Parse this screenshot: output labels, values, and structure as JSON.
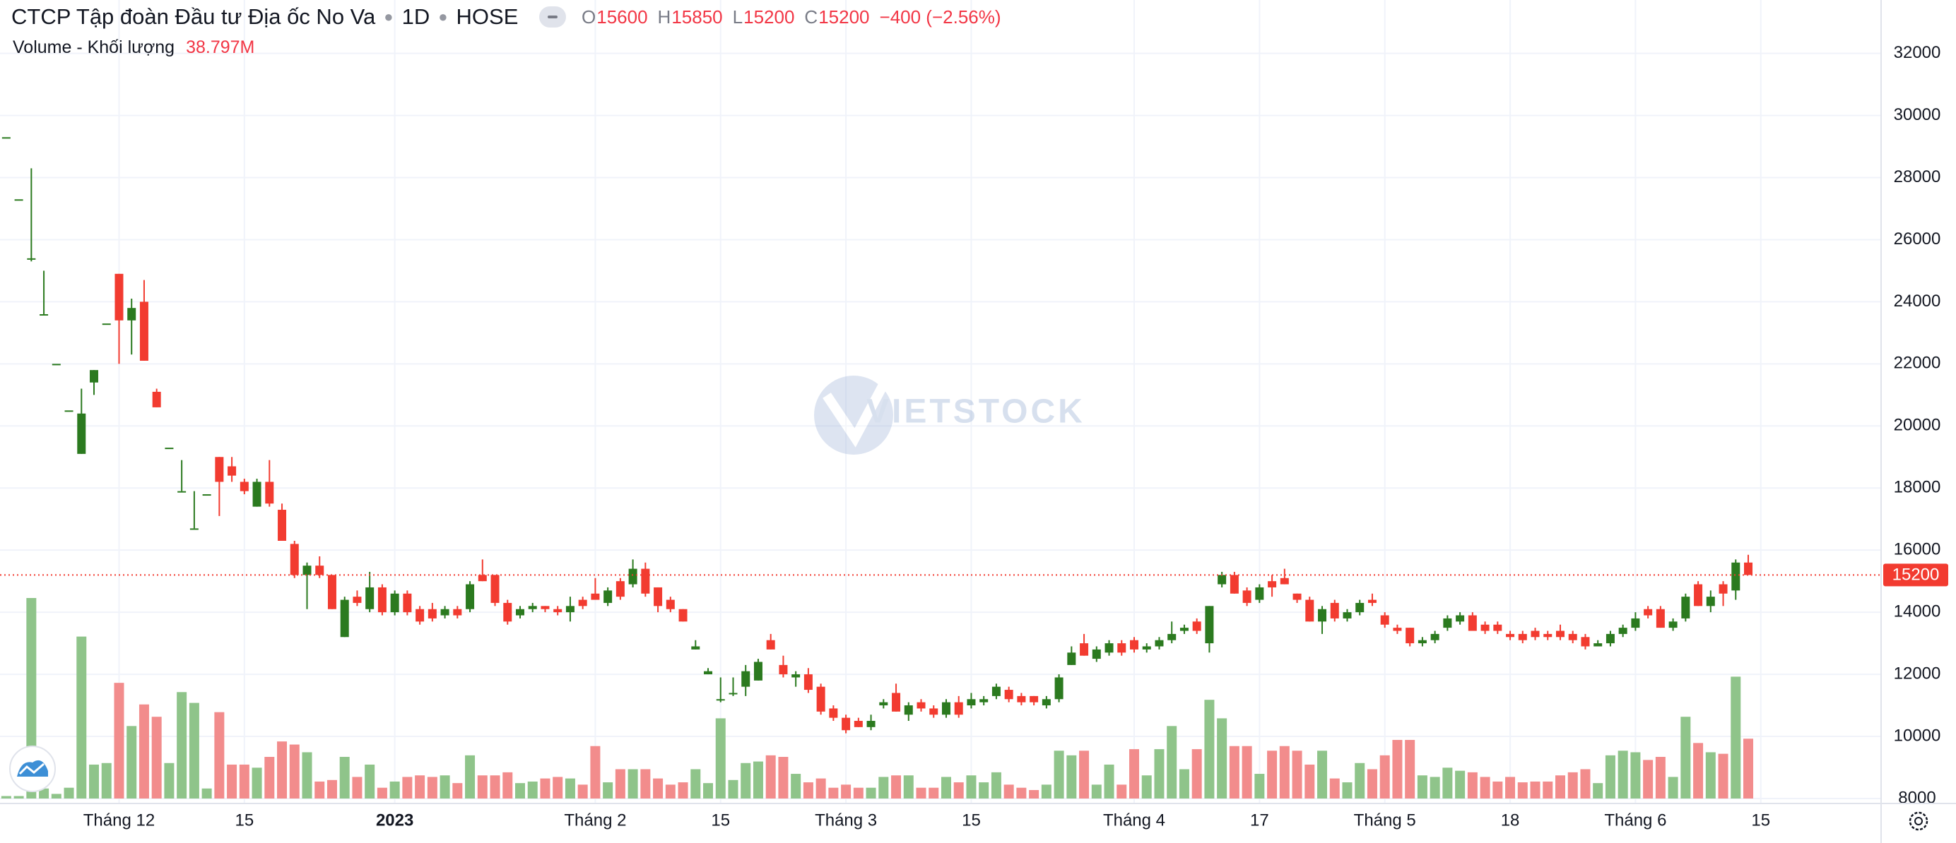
{
  "chart_data": {
    "type": "candlestick",
    "title": "CTCP Tập đoàn Đầu tư Địa ốc No Va",
    "interval": "1D",
    "exchange": "HOSE",
    "ohlc_keys": [
      "O",
      "H",
      "L",
      "C"
    ],
    "change_label": "−400 (−2.56%)",
    "volume_title": "Volume - Khối lượng",
    "volume_label": "38.797M",
    "watermark": "VIETSTOCK",
    "up_color": "#2b7a1f",
    "down_color": "#f23b30",
    "volume_up_color": "#8fc48a",
    "volume_down_color": "#f28c8c",
    "grid": true,
    "ylim": [
      7840,
      33720
    ],
    "yticks": [
      8000,
      10000,
      12000,
      14000,
      16000,
      18000,
      20000,
      22000,
      24000,
      26000,
      28000,
      30000,
      32000
    ],
    "xlim": [
      -0.5,
      149.6
    ],
    "xticks": [
      {
        "value": 9,
        "label": "Tháng 12"
      },
      {
        "value": 19,
        "label": "15"
      },
      {
        "value": 31,
        "label": "2023"
      },
      {
        "value": 47,
        "label": "Tháng 2"
      },
      {
        "value": 57,
        "label": "15"
      },
      {
        "value": 67,
        "label": "Tháng 3"
      },
      {
        "value": 77,
        "label": "15"
      },
      {
        "value": 90,
        "label": "Tháng 4"
      },
      {
        "value": 100,
        "label": "17"
      },
      {
        "value": 110,
        "label": "Tháng 5"
      },
      {
        "value": 120,
        "label": "18"
      },
      {
        "value": 130,
        "label": "Tháng 6"
      },
      {
        "value": 140,
        "label": "15"
      }
    ],
    "open": [
      29300,
      27300,
      25400,
      23600,
      22000,
      20500,
      19100,
      21400,
      23300,
      24900,
      23400,
      24000,
      21100,
      19300,
      17900,
      16700,
      17800,
      19000,
      18700,
      18200,
      17400,
      18200,
      17300,
      16200,
      15200,
      15500,
      15200,
      13200,
      14500,
      14100,
      14800,
      14000,
      14600,
      14100,
      14100,
      13900,
      14100,
      14100,
      15200,
      15200,
      14300,
      13900,
      14100,
      14200,
      14100,
      14000,
      14400,
      14600,
      14300,
      15000,
      14900,
      15400,
      14800,
      14400,
      14100,
      12800,
      12000,
      11200,
      11400,
      11600,
      11800,
      13100,
      12300,
      11900,
      12000,
      11600,
      10900,
      10600,
      10500,
      10300,
      11000,
      11400,
      10700,
      11100,
      10900,
      10700,
      11100,
      11000,
      11100,
      11300,
      11500,
      11300,
      11300,
      11000,
      11200,
      12300,
      13000,
      12500,
      12700,
      13000,
      13100,
      12800,
      12900,
      13100,
      13400,
      13700,
      13000,
      14900,
      15200,
      14700,
      14400,
      15000,
      15100,
      14600,
      14400,
      13700,
      14300,
      13800,
      14000,
      14400,
      13900,
      13500,
      13500,
      13000,
      13100,
      13500,
      13700,
      13900,
      13600,
      13600,
      13300,
      13300,
      13400,
      13300,
      13400,
      13300,
      13200,
      12900,
      13000,
      13300,
      13500,
      14100,
      14100,
      13500,
      13800,
      14900,
      14200,
      14900,
      14700,
      15600
    ],
    "high": [
      29300,
      27300,
      28300,
      25000,
      22000,
      20500,
      21200,
      21800,
      23300,
      24900,
      24100,
      24700,
      21200,
      19300,
      18900,
      17900,
      17800,
      19000,
      19000,
      18300,
      18300,
      18900,
      17500,
      16300,
      15600,
      15800,
      15200,
      14500,
      14700,
      15300,
      14900,
      14700,
      14700,
      14200,
      14300,
      14200,
      14200,
      15000,
      15700,
      15200,
      14400,
      14200,
      14300,
      14200,
      14200,
      14500,
      14500,
      15100,
      14800,
      15100,
      15700,
      15600,
      14800,
      14500,
      14100,
      13100,
      12200,
      11900,
      11900,
      12300,
      12500,
      13300,
      12600,
      12100,
      12200,
      11700,
      11000,
      10700,
      10600,
      10700,
      11200,
      11700,
      11100,
      11200,
      11000,
      11200,
      11300,
      11400,
      11300,
      11700,
      11600,
      11400,
      11300,
      11300,
      12000,
      12900,
      13300,
      12900,
      13100,
      13100,
      13200,
      13000,
      13200,
      13700,
      13600,
      13800,
      14200,
      15300,
      15300,
      14800,
      14900,
      15200,
      15400,
      14600,
      14500,
      14200,
      14400,
      14100,
      14400,
      14600,
      14000,
      13600,
      13500,
      13200,
      13400,
      13900,
      14000,
      14000,
      13700,
      13700,
      13400,
      13400,
      13500,
      13400,
      13600,
      13400,
      13300,
      13100,
      13400,
      13600,
      14000,
      14200,
      14200,
      13800,
      14600,
      15000,
      14700,
      15000,
      15700,
      15850
    ],
    "low": [
      29300,
      27300,
      25300,
      23600,
      22000,
      20500,
      19100,
      21000,
      23300,
      22000,
      22300,
      22100,
      20600,
      19300,
      17900,
      16700,
      17800,
      17100,
      18200,
      17800,
      17400,
      17400,
      16300,
      15100,
      14100,
      15100,
      14100,
      13200,
      14200,
      14000,
      13900,
      13900,
      13900,
      13600,
      13700,
      13800,
      13800,
      14000,
      15000,
      14200,
      13600,
      13800,
      14000,
      14000,
      13900,
      13700,
      14100,
      14400,
      14200,
      14400,
      14800,
      14500,
      14000,
      14000,
      13700,
      12800,
      12000,
      11100,
      11300,
      11300,
      11800,
      12800,
      11900,
      11600,
      11400,
      10700,
      10500,
      10100,
      10300,
      10200,
      10900,
      10800,
      10500,
      10800,
      10600,
      10600,
      10600,
      10900,
      11000,
      11200,
      11100,
      11000,
      11000,
      10900,
      11100,
      12300,
      12600,
      12400,
      12600,
      12600,
      12700,
      12700,
      12800,
      13000,
      13300,
      13300,
      12700,
      14800,
      14600,
      14200,
      14300,
      14500,
      14900,
      14300,
      13700,
      13300,
      13700,
      13700,
      13900,
      14200,
      13500,
      13300,
      12900,
      12900,
      13000,
      13400,
      13600,
      13400,
      13300,
      13300,
      13100,
      13000,
      13100,
      13100,
      13100,
      13000,
      12800,
      12900,
      12900,
      13200,
      13400,
      13800,
      13500,
      13400,
      13700,
      14200,
      14000,
      14200,
      14400,
      15200
    ],
    "close": [
      29300,
      27300,
      25400,
      23600,
      22000,
      20500,
      20400,
      21800,
      23300,
      23400,
      23800,
      22100,
      20600,
      19300,
      17900,
      16700,
      17800,
      18200,
      18400,
      17900,
      18200,
      17500,
      16300,
      15200,
      15500,
      15200,
      14100,
      14400,
      14300,
      14800,
      14000,
      14600,
      14000,
      13700,
      13800,
      14100,
      13900,
      14900,
      15000,
      14300,
      13700,
      14100,
      14200,
      14100,
      14000,
      14200,
      14200,
      14400,
      14700,
      14500,
      15400,
      14600,
      14200,
      14100,
      13700,
      12900,
      12100,
      11200,
      11400,
      12100,
      12400,
      12800,
      12000,
      12000,
      11500,
      10800,
      10600,
      10200,
      10300,
      10500,
      11100,
      10800,
      11000,
      10900,
      10700,
      11100,
      10700,
      11200,
      11200,
      11600,
      11200,
      11100,
      11100,
      11200,
      11900,
      12700,
      12600,
      12800,
      13000,
      12700,
      12800,
      12900,
      13100,
      13300,
      13500,
      13400,
      14200,
      15200,
      14600,
      14300,
      14800,
      14800,
      14900,
      14400,
      13700,
      14100,
      13800,
      14000,
      14300,
      14300,
      13600,
      13400,
      13000,
      13100,
      13300,
      13800,
      13900,
      13400,
      13400,
      13400,
      13200,
      13100,
      13200,
      13200,
      13200,
      13100,
      12900,
      13000,
      13300,
      13500,
      13800,
      13900,
      13500,
      13700,
      14500,
      14200,
      14500,
      14600,
      15600,
      15200
    ],
    "volume": [
      1.6,
      1.6,
      130,
      6.5,
      3,
      7,
      105,
      22,
      23,
      75,
      47,
      61,
      53,
      23,
      69,
      62,
      6.5,
      56,
      22,
      22,
      20,
      27,
      37,
      35,
      30,
      11,
      12,
      27,
      14,
      22,
      7,
      11,
      14,
      15,
      14,
      15,
      10,
      28,
      15,
      15,
      17,
      10,
      11,
      13,
      14,
      13,
      9,
      34,
      10.5,
      19,
      19,
      19,
      13,
      9,
      10.5,
      19,
      10,
      52,
      12,
      23,
      24,
      28,
      27,
      16,
      10.5,
      13,
      7,
      9,
      7,
      7,
      14,
      15,
      15,
      7,
      7,
      14,
      10.5,
      15,
      10.5,
      17,
      9,
      7,
      5.5,
      9,
      31,
      28,
      31,
      9,
      22,
      9,
      32,
      15,
      32,
      47,
      19,
      32,
      64,
      52,
      34,
      34,
      16,
      31,
      34,
      31,
      22,
      31,
      13,
      10.5,
      23,
      19,
      28,
      38,
      38,
      15,
      14,
      20,
      18,
      17,
      14,
      11,
      14,
      10.5,
      11,
      11,
      15,
      17,
      19,
      10,
      28,
      31,
      30,
      25,
      27,
      14,
      53,
      36,
      30,
      29,
      79,
      38.797
    ]
  }
}
